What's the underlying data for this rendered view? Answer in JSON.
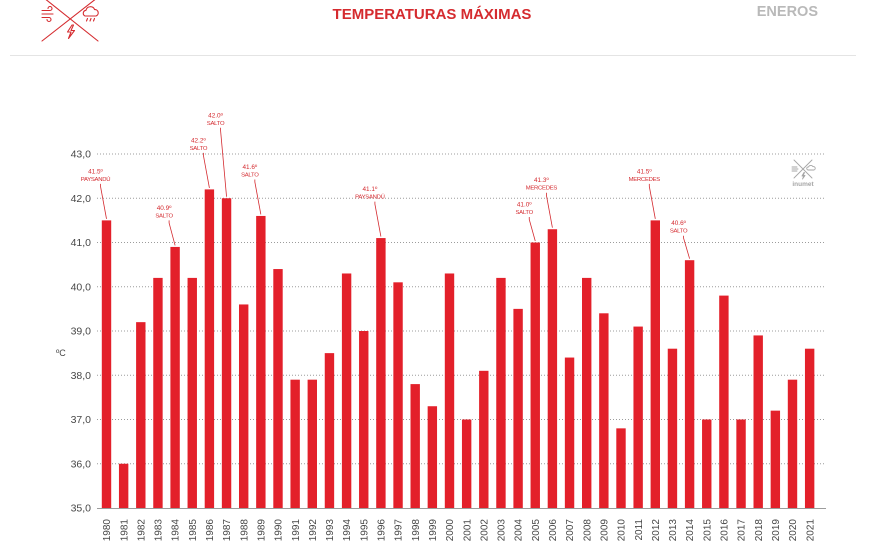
{
  "header": {
    "section": "ENEROS",
    "logo_icons": [
      "wind-icon",
      "cloud-rain-icon",
      "lightning-icon"
    ]
  },
  "watermark": {
    "text": "inumet",
    "icons": [
      "wind-icon",
      "cloud-rain-icon",
      "lightning-icon"
    ]
  },
  "colors": {
    "bar": "#e3202a",
    "title": "#d52b2f",
    "section": "#b9b9b9",
    "annotation": "#d42a2f",
    "grid": "#9c9c9c",
    "axis_text": "#474747",
    "watermark": "#a6a6a6"
  },
  "chart_data": {
    "type": "bar",
    "title": "TEMPERATURAS MÁXIMAS",
    "ylabel": "ºC",
    "ylim": [
      35,
      43
    ],
    "yticks": [
      35,
      36,
      37,
      38,
      39,
      40,
      41,
      42,
      43
    ],
    "ytick_labels": [
      "35,0",
      "36,0",
      "37,0",
      "38,0",
      "39,0",
      "40,0",
      "41,0",
      "42,0",
      "43,0"
    ],
    "grid": true,
    "categories": [
      "1980",
      "1981",
      "1982",
      "1983",
      "1984",
      "1985",
      "1986",
      "1987",
      "1988",
      "1989",
      "1990",
      "1991",
      "1992",
      "1993",
      "1994",
      "1995",
      "1996",
      "1997",
      "1998",
      "1999",
      "2000",
      "2001",
      "2002",
      "2003",
      "2004",
      "2005",
      "2006",
      "2007",
      "2008",
      "2009",
      "2010",
      "2011",
      "2012",
      "2013",
      "2014",
      "2015",
      "2016",
      "2017",
      "2018",
      "2019",
      "2020",
      "2021"
    ],
    "values": [
      41.5,
      36.0,
      39.2,
      40.2,
      40.9,
      40.2,
      42.2,
      42.0,
      39.6,
      41.6,
      40.4,
      37.9,
      37.9,
      38.5,
      40.3,
      39.0,
      41.1,
      40.1,
      37.8,
      37.3,
      40.3,
      37.0,
      38.1,
      40.2,
      39.5,
      41.0,
      41.3,
      38.4,
      40.2,
      39.4,
      36.8,
      39.1,
      41.5,
      38.6,
      40.6,
      37.0,
      39.8,
      37.0,
      38.9,
      37.2,
      37.9,
      38.6
    ],
    "annotations": [
      {
        "value_label": "41.5º",
        "location": "PAYSANDÚ"
      },
      null,
      null,
      null,
      {
        "value_label": "40.9º",
        "location": "SALTO"
      },
      null,
      {
        "value_label": "42.2º",
        "location": "SALTO"
      },
      {
        "value_label": "42.0º",
        "location": "SALTO"
      },
      null,
      {
        "value_label": "41.6º",
        "location": "SALTO"
      },
      null,
      null,
      null,
      null,
      null,
      null,
      {
        "value_label": "41.1º",
        "location": "PAYSANDÚ"
      },
      null,
      null,
      null,
      null,
      null,
      null,
      null,
      null,
      {
        "value_label": "41.0º",
        "location": "SALTO"
      },
      {
        "value_label": "41.3º",
        "location": "MERCEDES"
      },
      null,
      null,
      null,
      null,
      null,
      {
        "value_label": "41.5º",
        "location": "MERCEDES"
      },
      null,
      {
        "value_label": "40.6º",
        "location": "SALTO"
      },
      null,
      null,
      null,
      null,
      null,
      null,
      null
    ]
  }
}
